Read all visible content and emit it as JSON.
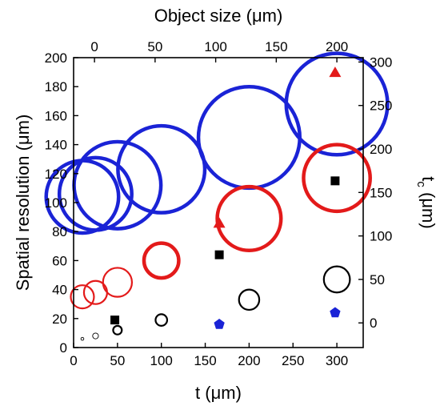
{
  "chart_data": {
    "type": "scatter",
    "title": "",
    "xlabel": "t (μm)",
    "ylabel": "Spatial resolution (μm)",
    "x2label": "Object size (μm)",
    "y2label": "t",
    "y2label_sub": "c",
    "y2label_unit": " (μm)",
    "xlim": [
      0,
      330
    ],
    "ylim": [
      0,
      200
    ],
    "x_ticks": [
      0,
      50,
      100,
      150,
      200,
      250,
      300
    ],
    "y_ticks": [
      0,
      20,
      40,
      60,
      80,
      100,
      120,
      140,
      160,
      180,
      200
    ],
    "x2_map": {
      "x": [
        10,
        300
      ],
      "value": [
        -10,
        200
      ]
    },
    "x2_ticks": [
      0,
      50,
      100,
      150,
      200
    ],
    "y2_map": {
      "y": [
        17,
        167
      ],
      "value": [
        0,
        250
      ]
    },
    "y2_ticks": [
      0,
      50,
      100,
      150,
      200,
      250,
      300
    ],
    "legend": "none",
    "grid": false,
    "colors": {
      "blue": "#1a23d6",
      "red": "#e31a1a",
      "black": "#000000"
    },
    "series": [
      {
        "marker": "open-circle",
        "color": "#1a23d6",
        "x": [
          10,
          25,
          50,
          100,
          200,
          300
        ],
        "y": [
          104,
          106,
          112,
          123,
          145,
          168
        ],
        "size_um": [
          25,
          25,
          30,
          30,
          35,
          35
        ]
      },
      {
        "marker": "open-circle",
        "color": "#e31a1a",
        "x": [
          10,
          25,
          50,
          100,
          200,
          300
        ],
        "y": [
          35,
          38,
          45,
          60,
          89,
          117
        ],
        "size_um": [
          8,
          8,
          10,
          12,
          22,
          23
        ]
      },
      {
        "marker": "open-circle",
        "color": "#000000",
        "x": [
          10,
          25,
          50,
          100,
          200,
          300
        ],
        "y": [
          6,
          8,
          12,
          19,
          33,
          47
        ],
        "size_um": [
          1,
          2,
          3,
          4,
          7,
          9
        ]
      },
      {
        "marker": "filled-square",
        "color": "#000000",
        "x": [
          47,
          166,
          298
        ],
        "y": [
          19,
          64,
          115
        ]
      },
      {
        "marker": "filled-triangle",
        "color": "#e31a1a",
        "x": [
          166,
          298
        ],
        "y": [
          86,
          190
        ]
      },
      {
        "marker": "filled-pentagon",
        "color": "#1a23d6",
        "x": [
          166,
          298
        ],
        "y": [
          16,
          24
        ]
      }
    ]
  }
}
